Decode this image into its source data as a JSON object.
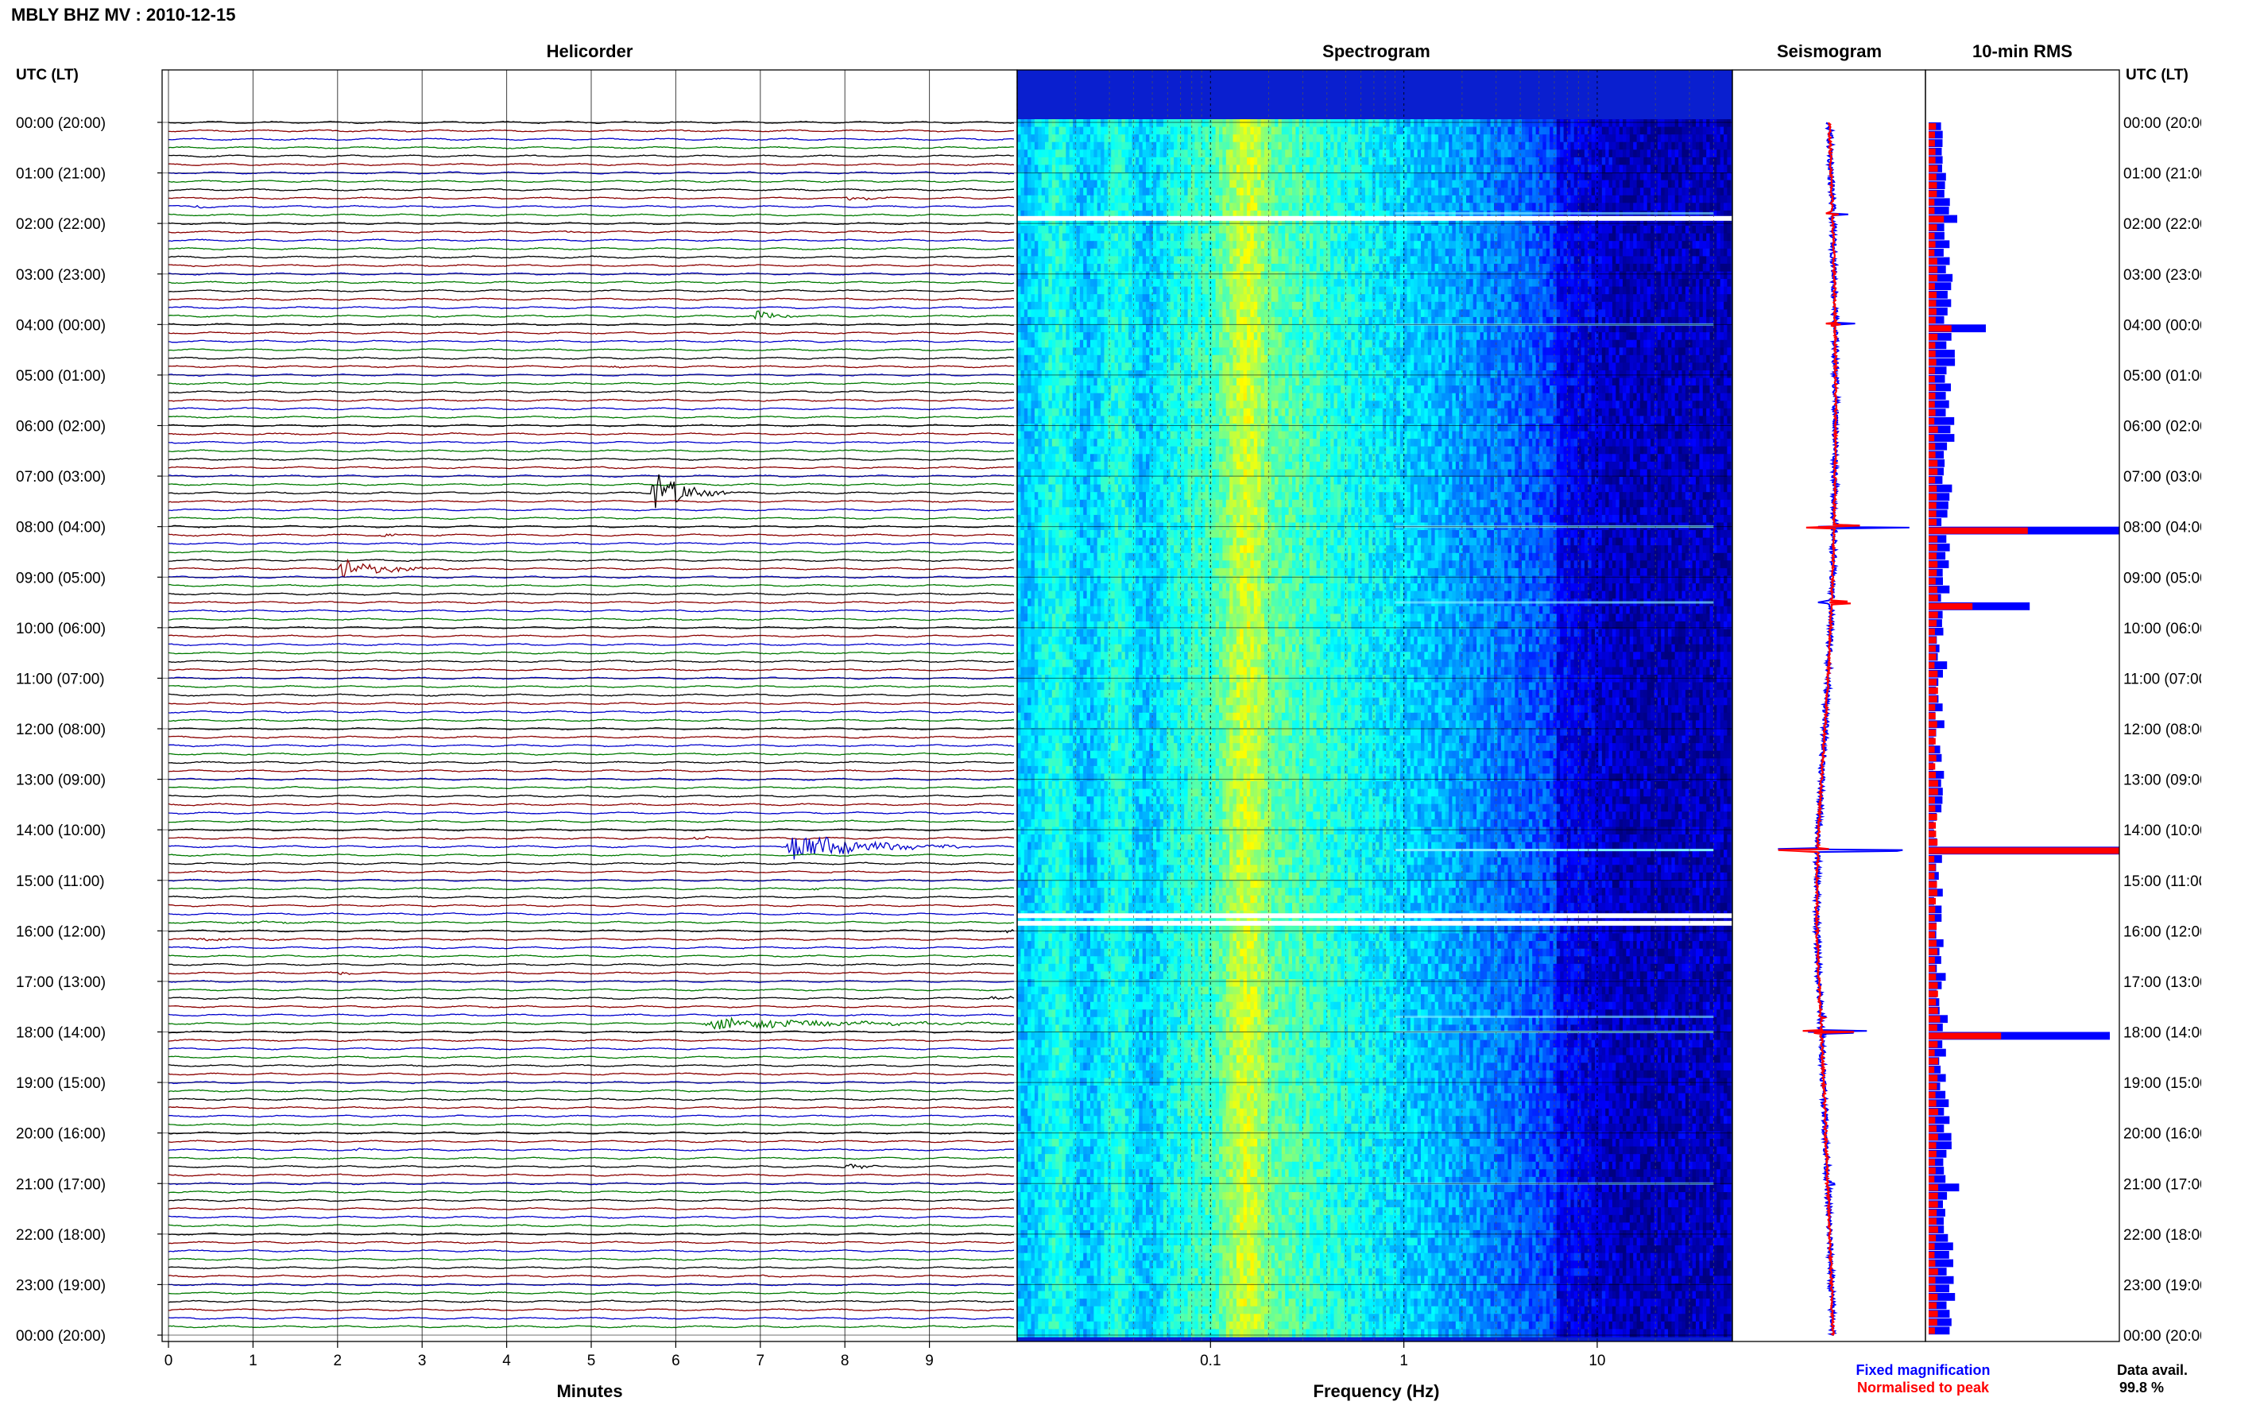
{
  "title": "MBLY BHZ MV : 2010-12-15",
  "panels": {
    "helicorder": "Helicorder",
    "spectrogram": "Spectrogram",
    "seismogram": "Seismogram",
    "rms": "10-min RMS"
  },
  "axis_header_left": "UTC (LT)",
  "axis_header_right": "UTC (LT)",
  "legend": {
    "fixed": "Fixed magnification",
    "normalised": "Normalised to peak",
    "fixed_color": "#0000ff",
    "normalised_color": "#ff0000"
  },
  "data_availability": {
    "label": "Data avail.",
    "value": "99.8 %"
  },
  "chart_data": [
    {
      "type": "line",
      "panel": "Helicorder",
      "xlabel": "Minutes",
      "x_ticks": [
        "0",
        "1",
        "2",
        "3",
        "4",
        "5",
        "6",
        "7",
        "8",
        "9"
      ],
      "xlim": [
        0,
        10
      ],
      "trace_interval_minutes": 10,
      "trace_colors": [
        "#000000",
        "#8b0000",
        "#0000cc",
        "#007a00"
      ],
      "y_ticks": [
        "00:00 (20:00)",
        "01:00 (21:00)",
        "02:00 (22:00)",
        "03:00 (23:00)",
        "04:00 (00:00)",
        "05:00 (01:00)",
        "06:00 (02:00)",
        "07:00 (03:00)",
        "08:00 (04:00)",
        "09:00 (05:00)",
        "10:00 (06:00)",
        "11:00 (07:00)",
        "12:00 (08:00)",
        "13:00 (09:00)",
        "14:00 (10:00)",
        "15:00 (11:00)",
        "16:00 (12:00)",
        "17:00 (13:00)",
        "18:00 (14:00)",
        "19:00 (15:00)",
        "20:00 (16:00)",
        "21:00 (17:00)",
        "22:00 (18:00)",
        "23:00 (19:00)",
        "00:00 (20:00)"
      ],
      "events": [
        {
          "row": 9,
          "minute": 8.0,
          "amp": 0.6,
          "dur": 0.6
        },
        {
          "row": 10,
          "minute": 0.3,
          "amp": 0.4,
          "dur": 0.3
        },
        {
          "row": 13,
          "minute": 4.7,
          "amp": 0.3,
          "dur": 0.3
        },
        {
          "row": 15,
          "minute": 4.2,
          "amp": 0.3,
          "dur": 0.2
        },
        {
          "row": 23,
          "minute": 6.9,
          "amp": 1.5,
          "dur": 0.5
        },
        {
          "row": 29,
          "minute": 5.2,
          "amp": 0.4,
          "dur": 0.3
        },
        {
          "row": 41,
          "minute": 8.2,
          "amp": 0.2,
          "dur": 0.2
        },
        {
          "row": 44,
          "minute": 5.7,
          "amp": 6.0,
          "dur": 0.7
        },
        {
          "row": 49,
          "minute": 2.5,
          "amp": 0.5,
          "dur": 0.3
        },
        {
          "row": 53,
          "minute": 2.0,
          "amp": 2.5,
          "dur": 1.0
        },
        {
          "row": 85,
          "minute": 6.2,
          "amp": 0.5,
          "dur": 0.3
        },
        {
          "row": 86,
          "minute": 7.3,
          "amp": 4.0,
          "dur": 1.6
        },
        {
          "row": 87,
          "minute": 6.5,
          "amp": 0.3,
          "dur": 0.3
        },
        {
          "row": 91,
          "minute": 7.6,
          "amp": 0.4,
          "dur": 0.3
        },
        {
          "row": 95,
          "minute": 0.7,
          "amp": 0.3,
          "dur": 1.2
        },
        {
          "row": 96,
          "minute": 9.9,
          "amp": 0.5,
          "dur": 0.2
        },
        {
          "row": 97,
          "minute": 0.2,
          "amp": 0.4,
          "dur": 1.6
        },
        {
          "row": 101,
          "minute": 2.0,
          "amp": 0.4,
          "dur": 0.3
        },
        {
          "row": 104,
          "minute": 9.7,
          "amp": 0.6,
          "dur": 0.5
        },
        {
          "row": 107,
          "minute": 6.3,
          "amp": 1.6,
          "dur": 3.0
        },
        {
          "row": 122,
          "minute": 2.2,
          "amp": 0.4,
          "dur": 0.3
        },
        {
          "row": 124,
          "minute": 8.0,
          "amp": 1.2,
          "dur": 0.4
        },
        {
          "row": 134,
          "minute": 3.5,
          "amp": 0.2,
          "dur": 0.2
        },
        {
          "row": 137,
          "minute": 7.0,
          "amp": 0.2,
          "dur": 0.3
        }
      ]
    },
    {
      "type": "heatmap",
      "panel": "Spectrogram",
      "xlabel": "Frequency (Hz)",
      "x_scale": "log",
      "x_ticks": [
        "0.1",
        "1",
        "10"
      ],
      "xlim": [
        0.01,
        50
      ],
      "gaps_hours": [
        1.9,
        15.7,
        15.85
      ]
    },
    {
      "type": "line",
      "panel": "Seismogram",
      "series": [
        {
          "name": "Fixed magnification",
          "color": "#0000ff"
        },
        {
          "name": "Normalised to peak",
          "color": "#ff0000"
        }
      ]
    },
    {
      "type": "bar",
      "panel": "10-min RMS",
      "orientation": "horizontal",
      "bins_per_hour": 6,
      "peaks": [
        {
          "hour": 1.8,
          "fixed": 0.15,
          "normalised": 0.08
        },
        {
          "hour": 4.0,
          "fixed": 0.3,
          "normalised": 0.12
        },
        {
          "hour": 8.0,
          "fixed": 1.0,
          "normalised": 0.52
        },
        {
          "hour": 9.5,
          "fixed": 0.53,
          "normalised": 0.23
        },
        {
          "hour": 14.4,
          "fixed": 1.0,
          "normalised": 1.0
        },
        {
          "hour": 17.7,
          "fixed": 0.1,
          "normalised": 0.06
        },
        {
          "hour": 18.0,
          "fixed": 0.95,
          "normalised": 0.38
        },
        {
          "hour": 21.0,
          "fixed": 0.16,
          "normalised": 0.05
        }
      ]
    }
  ]
}
